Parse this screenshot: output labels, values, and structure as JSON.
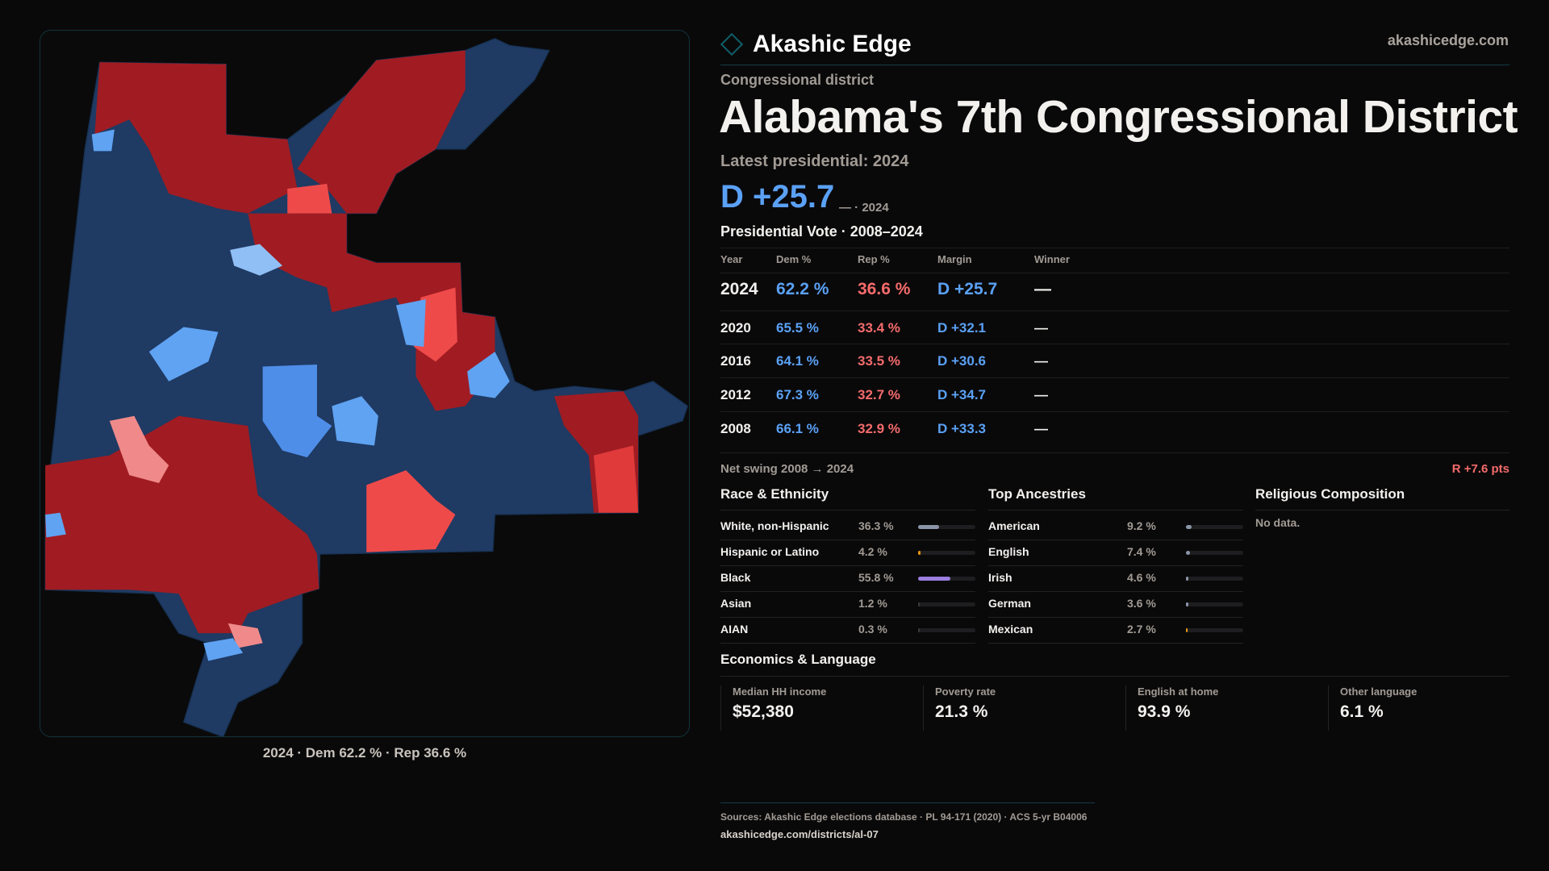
{
  "brand": {
    "name": "Akashic Edge",
    "url": "akashicedge.com"
  },
  "header": {
    "kicker": "Congressional district",
    "title": "Alabama's 7th Congressional District",
    "latest": "Latest presidential: 2024",
    "margin": "D +25.7",
    "margin_note": "— · 2024"
  },
  "votes": {
    "title": "Presidential Vote · 2008–2024",
    "columns": [
      "Year",
      "Dem %",
      "Rep %",
      "Margin",
      "Winner"
    ],
    "rows": [
      {
        "year": "2024",
        "dem": "62.2 %",
        "rep": "36.6 %",
        "margin": "D +25.7",
        "winner": "—"
      },
      {
        "year": "2020",
        "dem": "65.5 %",
        "rep": "33.4 %",
        "margin": "D +32.1",
        "winner": "—"
      },
      {
        "year": "2016",
        "dem": "64.1 %",
        "rep": "33.5 %",
        "margin": "D +30.6",
        "winner": "—"
      },
      {
        "year": "2012",
        "dem": "67.3 %",
        "rep": "32.7 %",
        "margin": "D +34.7",
        "winner": "—"
      },
      {
        "year": "2008",
        "dem": "66.1 %",
        "rep": "32.9 %",
        "margin": "D +33.3",
        "winner": "—"
      }
    ],
    "swing_label": "Net swing 2008 → 2024",
    "swing_value": "R +7.6 pts"
  },
  "race": {
    "title": "Race & Ethnicity",
    "rows": [
      {
        "label": "White, non-Hispanic",
        "value": "36.3 %",
        "pct": 36.3,
        "color": "#8a95a8"
      },
      {
        "label": "Hispanic or Latino",
        "value": "4.2 %",
        "pct": 4.2,
        "color": "#e8960f"
      },
      {
        "label": "Black",
        "value": "55.8 %",
        "pct": 55.8,
        "color": "#9b7ee0"
      },
      {
        "label": "Asian",
        "value": "1.2 %",
        "pct": 1.2,
        "color": "#3a3a3e"
      },
      {
        "label": "AIAN",
        "value": "0.3 %",
        "pct": 0.3,
        "color": "#3a3a3e"
      }
    ]
  },
  "ancestry": {
    "title": "Top Ancestries",
    "rows": [
      {
        "label": "American",
        "value": "9.2 %",
        "pct": 9.2,
        "color": "#8a95a8"
      },
      {
        "label": "English",
        "value": "7.4 %",
        "pct": 7.4,
        "color": "#8a95a8"
      },
      {
        "label": "Irish",
        "value": "4.6 %",
        "pct": 4.6,
        "color": "#8a95a8"
      },
      {
        "label": "German",
        "value": "3.6 %",
        "pct": 3.6,
        "color": "#8a95a8"
      },
      {
        "label": "Mexican",
        "value": "2.7 %",
        "pct": 2.7,
        "color": "#e8960f"
      }
    ]
  },
  "religion": {
    "title": "Religious Composition",
    "empty": "No data."
  },
  "econ": {
    "title": "Economics & Language",
    "stats": [
      {
        "label": "Median HH income",
        "value": "$52,380"
      },
      {
        "label": "Poverty rate",
        "value": "21.3 %"
      },
      {
        "label": "English at home",
        "value": "93.9 %"
      },
      {
        "label": "Other language",
        "value": "6.1 %"
      }
    ]
  },
  "map": {
    "caption": "2024 · Dem 62.2 % · Rep 36.6 %",
    "colors": {
      "safe_d": "#1f3a63",
      "lean_d": "#5fa3f2",
      "safe_r": "#a01c22",
      "lean_r": "#ef4a4a",
      "tilt_r": "#f08a8a"
    }
  },
  "footer": {
    "sources": "Sources: Akashic Edge elections database · PL 94-171 (2020) · ACS 5-yr B04006",
    "link": "akashicedge.com/districts/al-07"
  }
}
